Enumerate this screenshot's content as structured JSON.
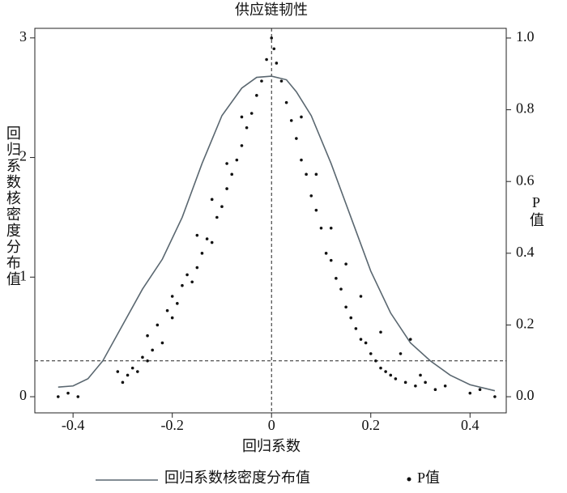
{
  "chart_data": {
    "type": "line",
    "title": "供应链韧性",
    "x_label": "回归系数",
    "y_label": "回归系数核密度分布值",
    "y2_label": "P值",
    "xlim": [
      -0.477,
      0.473
    ],
    "ylim": [
      -0.135,
      3.08
    ],
    "y2lim": [
      -0.045,
      1.027
    ],
    "xticks": [
      -0.4,
      -0.2,
      0,
      0.2,
      0.4
    ],
    "yticks": [
      0,
      1,
      2,
      3
    ],
    "y2ticks": [
      {
        "value": 0,
        "label": "0.0"
      },
      0.2,
      0.4,
      0.6,
      0.8,
      {
        "value": 1,
        "label": "1.0"
      }
    ],
    "hline_y2": 0.1,
    "vline_x": 0,
    "series": [
      {
        "name": "回归系数核密度分布值",
        "color": "#5a6770",
        "x": [
          -0.43,
          -0.4,
          -0.37,
          -0.34,
          -0.3,
          -0.26,
          -0.22,
          -0.18,
          -0.14,
          -0.1,
          -0.06,
          -0.03,
          0,
          0.03,
          0.05,
          0.08,
          0.12,
          0.16,
          0.2,
          0.24,
          0.28,
          0.32,
          0.36,
          0.4,
          0.45
        ],
        "values": [
          0.08,
          0.09,
          0.15,
          0.3,
          0.6,
          0.9,
          1.15,
          1.5,
          1.95,
          2.35,
          2.58,
          2.67,
          2.68,
          2.65,
          2.55,
          2.35,
          1.95,
          1.5,
          1.05,
          0.7,
          0.45,
          0.3,
          0.18,
          0.1,
          0.05
        ]
      },
      {
        "name": "P值",
        "marker": "scatter",
        "axis": "y2",
        "color": "#111111",
        "x": [
          -0.43,
          -0.41,
          -0.39,
          -0.31,
          -0.3,
          -0.29,
          -0.28,
          -0.27,
          -0.26,
          -0.25,
          -0.25,
          -0.24,
          -0.23,
          -0.22,
          -0.21,
          -0.2,
          -0.2,
          -0.19,
          -0.18,
          -0.17,
          -0.16,
          -0.15,
          -0.14,
          -0.13,
          -0.12,
          -0.11,
          -0.1,
          -0.09,
          -0.08,
          -0.07,
          -0.06,
          -0.05,
          -0.04,
          -0.03,
          -0.02,
          -0.01,
          0.0,
          0.005,
          0.01,
          0.02,
          0.03,
          0.04,
          0.05,
          0.06,
          0.07,
          0.08,
          0.09,
          0.1,
          0.11,
          0.12,
          0.13,
          0.14,
          0.15,
          0.16,
          0.17,
          0.18,
          0.19,
          0.2,
          0.21,
          0.22,
          0.23,
          0.24,
          0.25,
          0.27,
          0.29,
          0.31,
          0.33,
          0.35,
          0.4,
          0.45,
          -0.15,
          -0.12,
          -0.09,
          -0.06,
          0.06,
          0.09,
          0.12,
          0.15,
          0.18,
          0.22,
          0.26,
          0.28,
          0.3,
          0.42
        ],
        "values": [
          0.0,
          0.01,
          0.0,
          0.07,
          0.04,
          0.06,
          0.08,
          0.07,
          0.11,
          0.1,
          0.17,
          0.13,
          0.2,
          0.15,
          0.24,
          0.22,
          0.28,
          0.26,
          0.31,
          0.34,
          0.32,
          0.36,
          0.4,
          0.44,
          0.43,
          0.5,
          0.53,
          0.58,
          0.62,
          0.66,
          0.7,
          0.75,
          0.79,
          0.84,
          0.88,
          0.94,
          1.0,
          0.97,
          0.93,
          0.88,
          0.82,
          0.77,
          0.72,
          0.66,
          0.62,
          0.56,
          0.52,
          0.47,
          0.4,
          0.38,
          0.33,
          0.3,
          0.25,
          0.22,
          0.19,
          0.16,
          0.15,
          0.12,
          0.1,
          0.08,
          0.07,
          0.06,
          0.05,
          0.04,
          0.03,
          0.04,
          0.02,
          0.03,
          0.01,
          0.0,
          0.45,
          0.55,
          0.65,
          0.78,
          0.78,
          0.62,
          0.47,
          0.37,
          0.28,
          0.18,
          0.12,
          0.16,
          0.06,
          0.02
        ]
      }
    ]
  }
}
